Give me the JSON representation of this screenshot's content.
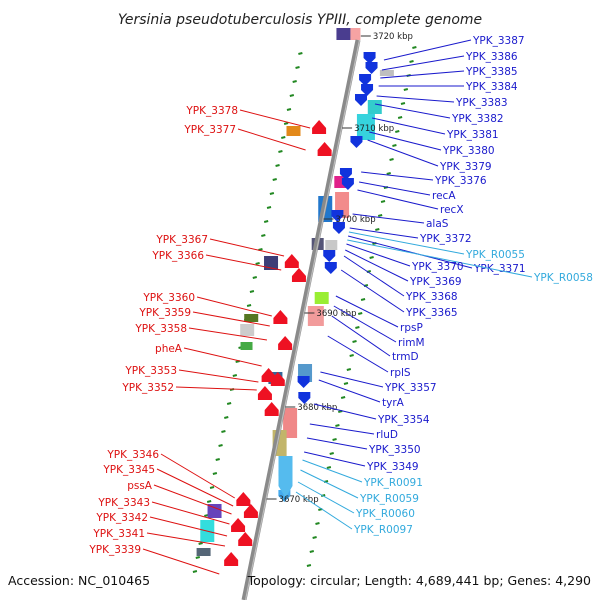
{
  "title": "Yersinia pseudotuberculosis YPIII, complete genome",
  "footer": {
    "accession": "Accession: NC_010465",
    "summary": "Topology: circular; Length: 4,689,441 bp; Genes: 4,290"
  },
  "colors": {
    "forward_label": "#1a1acc",
    "reverse_label": "#dd1111",
    "rna_label": "#33aadd",
    "backbone": "#888888",
    "tick": "#228822"
  },
  "kbp_marks": [
    {
      "label": "3720 kbp"
    },
    {
      "label": "3710 kbp"
    },
    {
      "label": "3700 kbp"
    },
    {
      "label": "3690 kbp"
    },
    {
      "label": "3680 kbp"
    },
    {
      "label": "3670 kbp"
    }
  ],
  "right_labels": [
    {
      "text": "YPK_3387",
      "kind": "forward"
    },
    {
      "text": "YPK_3386",
      "kind": "forward"
    },
    {
      "text": "YPK_3385",
      "kind": "forward"
    },
    {
      "text": "YPK_3384",
      "kind": "forward"
    },
    {
      "text": "YPK_3383",
      "kind": "forward"
    },
    {
      "text": "YPK_3382",
      "kind": "forward"
    },
    {
      "text": "YPK_3381",
      "kind": "forward"
    },
    {
      "text": "YPK_3380",
      "kind": "forward"
    },
    {
      "text": "YPK_3379",
      "kind": "forward"
    },
    {
      "text": "YPK_3376",
      "kind": "forward"
    },
    {
      "text": "recA",
      "kind": "forward"
    },
    {
      "text": "recX",
      "kind": "forward"
    },
    {
      "text": "alaS",
      "kind": "forward"
    },
    {
      "text": "YPK_3372",
      "kind": "forward"
    },
    {
      "text": "YPK_R0055",
      "kind": "rna"
    },
    {
      "text": "YPK_3371",
      "kind": "forward"
    },
    {
      "text": "YPK_R0058",
      "kind": "rna"
    },
    {
      "text": "YPK_3370",
      "kind": "forward"
    },
    {
      "text": "YPK_3369",
      "kind": "forward"
    },
    {
      "text": "YPK_3368",
      "kind": "forward"
    },
    {
      "text": "YPK_3365",
      "kind": "forward"
    },
    {
      "text": "rpsP",
      "kind": "forward"
    },
    {
      "text": "rimM",
      "kind": "forward"
    },
    {
      "text": "trmD",
      "kind": "forward"
    },
    {
      "text": "rplS",
      "kind": "forward"
    },
    {
      "text": "YPK_3357",
      "kind": "forward"
    },
    {
      "text": "tyrA",
      "kind": "forward"
    },
    {
      "text": "YPK_3354",
      "kind": "forward"
    },
    {
      "text": "rluD",
      "kind": "forward"
    },
    {
      "text": "YPK_3350",
      "kind": "forward"
    },
    {
      "text": "YPK_3349",
      "kind": "forward"
    },
    {
      "text": "YPK_R0091",
      "kind": "rna"
    },
    {
      "text": "YPK_R0059",
      "kind": "rna"
    },
    {
      "text": "YPK_R0060",
      "kind": "rna"
    },
    {
      "text": "YPK_R0097",
      "kind": "rna"
    }
  ],
  "left_labels": [
    {
      "text": "YPK_3378",
      "kind": "reverse"
    },
    {
      "text": "YPK_3377",
      "kind": "reverse"
    },
    {
      "text": "YPK_3367",
      "kind": "reverse"
    },
    {
      "text": "YPK_3366",
      "kind": "reverse"
    },
    {
      "text": "YPK_3360",
      "kind": "reverse"
    },
    {
      "text": "YPK_3359",
      "kind": "reverse"
    },
    {
      "text": "YPK_3358",
      "kind": "reverse"
    },
    {
      "text": "pheA",
      "kind": "reverse"
    },
    {
      "text": "YPK_3353",
      "kind": "reverse"
    },
    {
      "text": "YPK_3352",
      "kind": "reverse"
    },
    {
      "text": "YPK_3346",
      "kind": "reverse"
    },
    {
      "text": "YPK_3345",
      "kind": "reverse"
    },
    {
      "text": "pssA",
      "kind": "reverse"
    },
    {
      "text": "YPK_3343",
      "kind": "reverse"
    },
    {
      "text": "YPK_3342",
      "kind": "reverse"
    },
    {
      "text": "YPK_3341",
      "kind": "reverse"
    },
    {
      "text": "YPK_3339",
      "kind": "reverse"
    }
  ]
}
